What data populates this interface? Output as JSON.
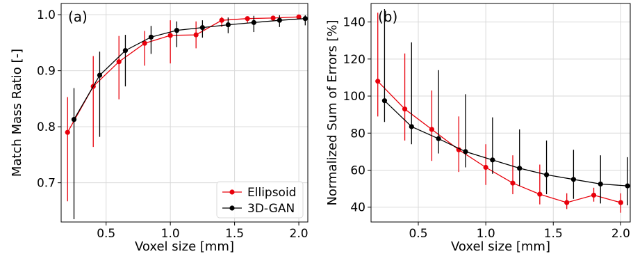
{
  "colors": {
    "ellipsoid": "#e8000b",
    "gan": "#000000",
    "grid": "#d9d9d9"
  },
  "chart_data": [
    {
      "type": "line",
      "panel_label": "(a)",
      "xlabel": "Voxel size [mm]",
      "ylabel": "Match Mass Ratio [-]",
      "xlim": [
        0.15,
        2.07
      ],
      "ylim": [
        0.63,
        1.02
      ],
      "xticks": [
        0.5,
        1.0,
        1.5,
        2.0
      ],
      "xtick_labels": [
        "0.5",
        "1.0",
        "1.5",
        "2.0"
      ],
      "yticks": [
        0.7,
        0.8,
        0.9,
        1.0
      ],
      "ytick_labels": [
        "0.7",
        "0.8",
        "0.9",
        "1.0"
      ],
      "grid": true,
      "legend": {
        "placement": "bottom-right",
        "entries": [
          "Ellipsoid",
          "3D-GAN"
        ]
      },
      "series": [
        {
          "name": "Ellipsoid",
          "color": "ellipsoid",
          "x": [
            0.2,
            0.4,
            0.6,
            0.8,
            1.0,
            1.2,
            1.4,
            1.6,
            1.8,
            2.0
          ],
          "y": [
            0.79,
            0.872,
            0.916,
            0.949,
            0.963,
            0.964,
            0.99,
            0.993,
            0.994,
            0.996
          ],
          "err_low": [
            0.667,
            0.764,
            0.849,
            0.909,
            0.913,
            0.94,
            0.978,
            0.985,
            0.989,
            0.993
          ],
          "err_high": [
            0.853,
            0.926,
            0.962,
            0.971,
            0.99,
            0.988,
            0.996,
            0.997,
            0.998,
            0.998
          ]
        },
        {
          "name": "3D-GAN",
          "color": "gan",
          "x": [
            0.25,
            0.45,
            0.65,
            0.85,
            1.05,
            1.25,
            1.45,
            1.65,
            1.85,
            2.05
          ],
          "y": [
            0.813,
            0.892,
            0.936,
            0.96,
            0.972,
            0.977,
            0.982,
            0.986,
            0.99,
            0.993
          ],
          "err_low": [
            0.635,
            0.782,
            0.872,
            0.93,
            0.942,
            0.959,
            0.967,
            0.969,
            0.978,
            0.981
          ],
          "err_high": [
            0.869,
            0.934,
            0.964,
            0.98,
            0.988,
            0.99,
            0.995,
            0.998,
            0.999,
            0.999
          ]
        }
      ]
    },
    {
      "type": "line",
      "panel_label": "(b)",
      "xlabel": "Voxel size [mm]",
      "ylabel": "Normalized Sum of Errors [%]",
      "xlim": [
        0.15,
        2.07
      ],
      "ylim": [
        32,
        150
      ],
      "xticks": [
        0.5,
        1.0,
        1.5,
        2.0
      ],
      "xtick_labels": [
        "0.5",
        "1.0",
        "1.5",
        "2.0"
      ],
      "yticks": [
        40,
        60,
        80,
        100,
        120,
        140
      ],
      "ytick_labels": [
        "40",
        "60",
        "80",
        "100",
        "120",
        "140"
      ],
      "grid": true,
      "series": [
        {
          "name": "Ellipsoid",
          "color": "ellipsoid",
          "x": [
            0.2,
            0.4,
            0.6,
            0.8,
            1.0,
            1.2,
            1.4,
            1.6,
            1.8,
            2.0
          ],
          "y": [
            108,
            93,
            82,
            71,
            61.5,
            53,
            47,
            42.5,
            46.5,
            42.5
          ],
          "err_low": [
            89,
            76,
            65,
            59,
            52,
            47,
            41.5,
            39,
            43,
            37
          ],
          "err_high": [
            145,
            123,
            103,
            89,
            74,
            68,
            63,
            47.5,
            50.5,
            47.5
          ]
        },
        {
          "name": "3D-GAN",
          "color": "gan",
          "x": [
            0.25,
            0.45,
            0.65,
            0.85,
            1.05,
            1.25,
            1.45,
            1.65,
            1.85,
            2.05
          ],
          "y": [
            97.5,
            83.5,
            77,
            70,
            65.5,
            61,
            57.5,
            55,
            52.5,
            51.5
          ],
          "err_low": [
            86,
            74,
            69,
            61.5,
            58,
            51.5,
            47,
            44.5,
            42,
            41
          ],
          "err_high": [
            147,
            129,
            114,
            101,
            88.5,
            82,
            76,
            71,
            68,
            67
          ]
        }
      ]
    }
  ]
}
